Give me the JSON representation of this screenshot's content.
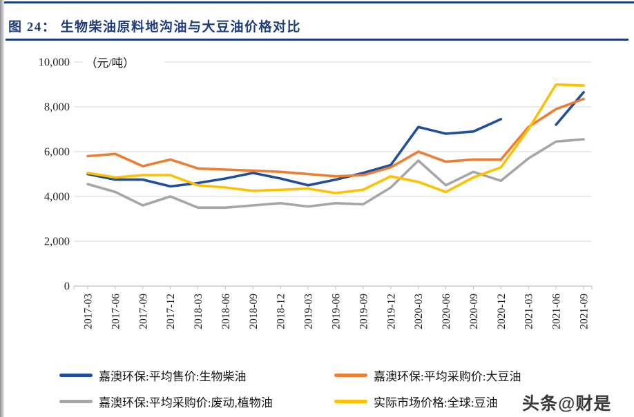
{
  "page": {
    "figure_label": "图 24：  生物柴油原料地沟油与大豆油价格对比",
    "watermark": "头条@财是",
    "accent_color": "#1E3B7A"
  },
  "chart_data": {
    "type": "line",
    "title": "生物柴油原料地沟油与大豆油价格对比",
    "unit_label": "（元/吨）",
    "xlabel": "",
    "ylabel": "元/吨",
    "ylim": [
      0,
      10000
    ],
    "yticks": [
      0,
      2000,
      4000,
      6000,
      8000,
      10000
    ],
    "grid": true,
    "legend_position": "bottom",
    "categories": [
      "2017-03",
      "2017-06",
      "2017-09",
      "2017-12",
      "2018-03",
      "2018-06",
      "2018-09",
      "2018-12",
      "2019-03",
      "2019-06",
      "2019-09",
      "2019-12",
      "2020-03",
      "2020-06",
      "2020-09",
      "2020-12",
      "2021-03",
      "2021-06",
      "2021-09"
    ],
    "series": [
      {
        "name": "嘉澳环保:平均售价:生物柴油",
        "color": "#1F4E9C",
        "values": [
          5000,
          4750,
          4750,
          4450,
          4600,
          4800,
          5050,
          4800,
          4500,
          4750,
          5050,
          5400,
          7100,
          6800,
          6900,
          7450,
          null,
          7200,
          8650
        ]
      },
      {
        "name": "嘉澳环保:平均采购价:大豆油",
        "color": "#ED7D31",
        "values": [
          5800,
          5900,
          5350,
          5650,
          5250,
          5200,
          5150,
          5100,
          5000,
          4900,
          4950,
          5300,
          6000,
          5550,
          5650,
          5650,
          7100,
          7900,
          8350
        ]
      },
      {
        "name": "嘉澳环保:平均采购价:废动,植物油",
        "color": "#A6A6A6",
        "values": [
          4550,
          4200,
          3600,
          4000,
          3500,
          3500,
          3600,
          3700,
          3550,
          3700,
          3650,
          4400,
          5600,
          4500,
          5100,
          4700,
          5700,
          6450,
          6550
        ]
      },
      {
        "name": "实际市场价格:全球:豆油",
        "color": "#FFC000",
        "values": [
          5050,
          4850,
          4950,
          4950,
          4500,
          4400,
          4250,
          4300,
          4350,
          4150,
          4300,
          4900,
          4650,
          4200,
          4850,
          5300,
          7000,
          9000,
          8950
        ]
      }
    ]
  }
}
